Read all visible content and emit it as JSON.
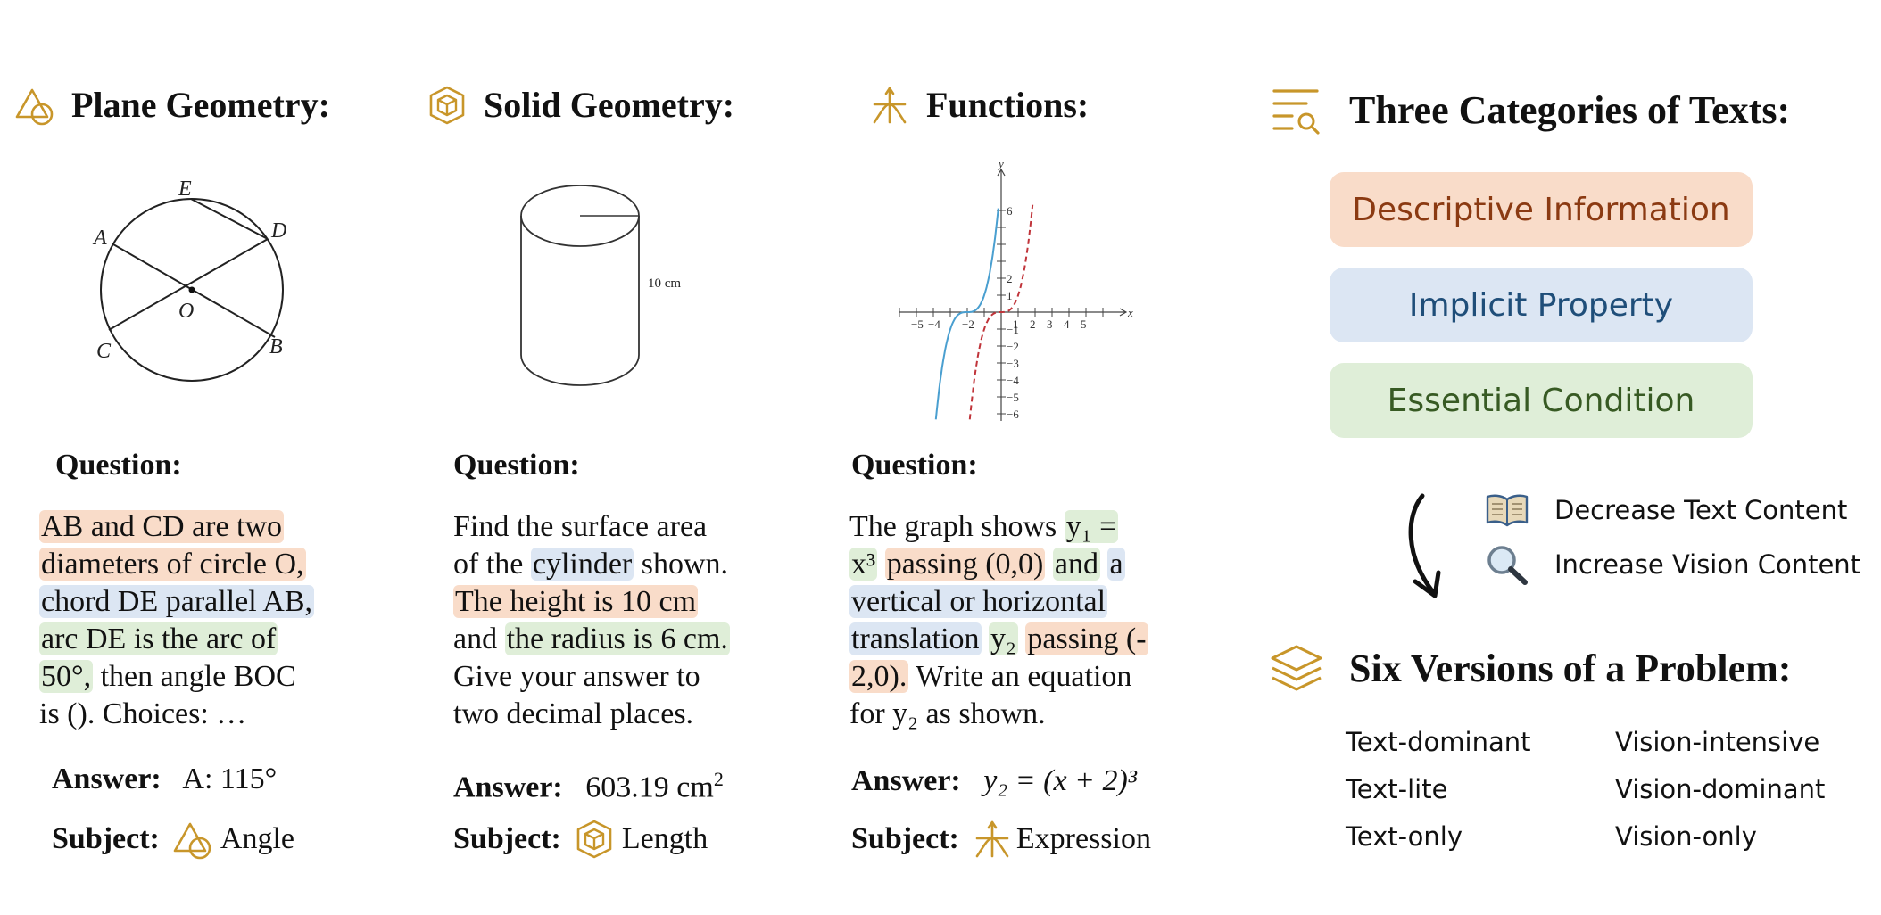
{
  "colors": {
    "accent_gold": "#c8962a",
    "orange_bg": "#f9dcc9",
    "blue_bg": "#dce6f3",
    "green_bg": "#dfeed8",
    "orange_text": "#8b3a12",
    "blue_text": "#1f4e79",
    "green_text": "#375a23"
  },
  "columns": [
    {
      "title": "Plane Geometry:",
      "icon": "triangle-circle-icon",
      "figure": {
        "labels": [
          "E",
          "D",
          "A",
          "O",
          "C",
          "B"
        ]
      },
      "question_label": "Question:",
      "answer_label": "Answer:",
      "answer": "A: 115°",
      "subject_label": "Subject:",
      "subject": "Angle",
      "question_lines": [
        [
          {
            "t": "AB and CD are two",
            "h": "o"
          }
        ],
        [
          {
            "t": "diameters of circle O,",
            "h": "o"
          }
        ],
        [
          {
            "t": "chord DE parallel AB,",
            "h": "b"
          }
        ],
        [
          {
            "t": "arc DE is the arc of",
            "h": "g"
          }
        ],
        [
          {
            "t": "50°,",
            "h": "g"
          },
          {
            "t": " then angle BOC",
            "h": ""
          }
        ],
        [
          {
            "t": "is (). Choices: …",
            "h": ""
          }
        ]
      ]
    },
    {
      "title": "Solid Geometry:",
      "icon": "cube-icon",
      "figure": {
        "labels": [
          "10 cm"
        ]
      },
      "question_label": "Question:",
      "answer_label": "Answer:",
      "answer": "603.19 cm",
      "answer_sup": "2",
      "subject_label": "Subject:",
      "subject": "Length",
      "question_lines": [
        [
          {
            "t": "Find the surface area",
            "h": ""
          }
        ],
        [
          {
            "t": "of the ",
            "h": ""
          },
          {
            "t": "cylinder",
            "h": "b"
          },
          {
            "t": " shown.",
            "h": ""
          }
        ],
        [
          {
            "t": "The height is 10 cm",
            "h": "o"
          }
        ],
        [
          {
            "t": "and ",
            "h": ""
          },
          {
            "t": "the radius is 6 cm.",
            "h": "g"
          }
        ],
        [
          {
            "t": "Give your answer to",
            "h": ""
          }
        ],
        [
          {
            "t": "two decimal places.",
            "h": ""
          }
        ]
      ]
    },
    {
      "title": "Functions:",
      "icon": "axes-curve-icon",
      "figure": {
        "x_ticks": [
          "−5",
          "−4",
          "−2",
          "1",
          "2",
          "3",
          "4",
          "5"
        ],
        "y_ticks": [
          "6",
          "2",
          "1",
          "−1",
          "−2",
          "−3",
          "−4",
          "−5",
          "−6"
        ],
        "x_axis": "x",
        "y_axis": "y"
      },
      "question_label": "Question:",
      "answer_label": "Answer:",
      "answer": "y₂ = (x + 2)³",
      "subject_label": "Subject:",
      "subject": "Expression",
      "question_lines": [
        [
          {
            "t": "The graph shows ",
            "h": ""
          },
          {
            "t": "y₁ =",
            "h": "g"
          }
        ],
        [
          {
            "t": "x³",
            "h": "g"
          },
          {
            "t": " ",
            "h": ""
          },
          {
            "t": "passing (0,0)",
            "h": "o"
          },
          {
            "t": " ",
            "h": ""
          },
          {
            "t": "and",
            "h": "g"
          },
          {
            "t": " ",
            "h": ""
          },
          {
            "t": "a",
            "h": "b"
          }
        ],
        [
          {
            "t": "vertical or horizontal",
            "h": "b"
          }
        ],
        [
          {
            "t": "translation",
            "h": "b"
          },
          {
            "t": " ",
            "h": ""
          },
          {
            "t": "y₂",
            "h": "g"
          },
          {
            "t": " ",
            "h": ""
          },
          {
            "t": "passing (-",
            "h": "o"
          }
        ],
        [
          {
            "t": "2,0).",
            "h": "o"
          },
          {
            "t": " Write an equation",
            "h": ""
          }
        ],
        [
          {
            "t": "for y₂ as shown.",
            "h": ""
          }
        ]
      ]
    }
  ],
  "categories": {
    "title": "Three Categories of Texts:",
    "icon": "list-search-icon",
    "items": [
      {
        "label": "Descriptive Information"
      },
      {
        "label": "Implicit Property"
      },
      {
        "label": "Essential Condition"
      }
    ]
  },
  "transition": {
    "decrease": {
      "icon": "open-book-icon",
      "label": "Decrease Text Content"
    },
    "increase": {
      "icon": "magnifier-icon",
      "label": "Increase Vision Content"
    }
  },
  "versions": {
    "title": "Six Versions of a Problem:",
    "icon": "layers-icon",
    "left": [
      "Text-dominant",
      "Text-lite",
      "Text-only"
    ],
    "right": [
      "Vision-intensive",
      "Vision-dominant",
      "Vision-only"
    ]
  }
}
